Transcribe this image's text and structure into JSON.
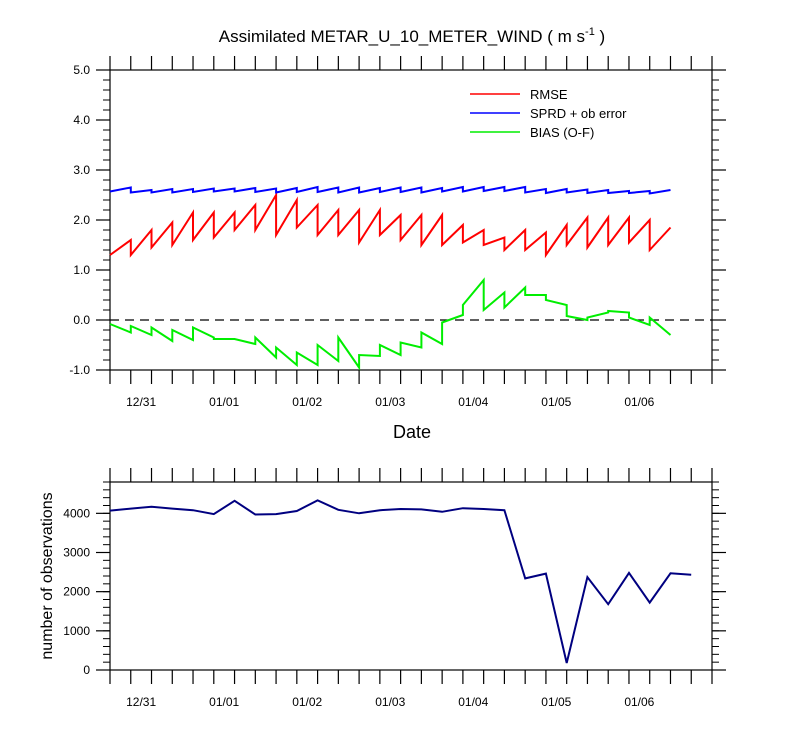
{
  "chart_data": [
    {
      "type": "line",
      "title": "Assimilated METAR_U_10_METER_WIND",
      "title_units": "( m s",
      "title_units_exp": "-1",
      "title_units_close": " )",
      "xlabel": "Date",
      "ylabel": "",
      "ylim": [
        -1.0,
        5.0
      ],
      "xlim": [
        0,
        29
      ],
      "y_ticks": [
        -1.0,
        0.0,
        1.0,
        2.0,
        3.0,
        4.0,
        5.0
      ],
      "y_tick_labels": [
        "-1.0",
        "0.0",
        "1.0",
        "2.0",
        "3.0",
        "4.0",
        "5.0"
      ],
      "x_tick_labels": [
        {
          "pos": 1.5,
          "label": "12/31"
        },
        {
          "pos": 5.5,
          "label": "01/01"
        },
        {
          "pos": 9.5,
          "label": "01/02"
        },
        {
          "pos": 13.5,
          "label": "01/03"
        },
        {
          "pos": 17.5,
          "label": "01/04"
        },
        {
          "pos": 21.5,
          "label": "01/05"
        },
        {
          "pos": 25.5,
          "label": "01/06"
        }
      ],
      "zero_line": true,
      "legend_position": "top-right",
      "series": [
        {
          "name": "RMSE",
          "color": "#ff0000",
          "points": [
            [
              0,
              1.3
            ],
            [
              1,
              1.6
            ],
            [
              1,
              1.3
            ],
            [
              2,
              1.8
            ],
            [
              2,
              1.45
            ],
            [
              3,
              1.95
            ],
            [
              3,
              1.5
            ],
            [
              4,
              2.15
            ],
            [
              4,
              1.6
            ],
            [
              5,
              2.15
            ],
            [
              5,
              1.65
            ],
            [
              6,
              2.15
            ],
            [
              6,
              1.8
            ],
            [
              7,
              2.3
            ],
            [
              7,
              1.8
            ],
            [
              8,
              2.5
            ],
            [
              8,
              1.7
            ],
            [
              9,
              2.4
            ],
            [
              9,
              1.85
            ],
            [
              10,
              2.3
            ],
            [
              10,
              1.7
            ],
            [
              11,
              2.2
            ],
            [
              11,
              1.7
            ],
            [
              12,
              2.2
            ],
            [
              12,
              1.55
            ],
            [
              13,
              2.2
            ],
            [
              13,
              1.7
            ],
            [
              14,
              2.1
            ],
            [
              14,
              1.6
            ],
            [
              15,
              2.1
            ],
            [
              15,
              1.5
            ],
            [
              16,
              2.1
            ],
            [
              16,
              1.5
            ],
            [
              17,
              1.9
            ],
            [
              17,
              1.55
            ],
            [
              18,
              1.8
            ],
            [
              18,
              1.5
            ],
            [
              19,
              1.65
            ],
            [
              19,
              1.4
            ],
            [
              20,
              1.8
            ],
            [
              20,
              1.4
            ],
            [
              21,
              1.75
            ],
            [
              21,
              1.3
            ],
            [
              22,
              1.9
            ],
            [
              22,
              1.5
            ],
            [
              23,
              2.05
            ],
            [
              23,
              1.45
            ],
            [
              24,
              2.05
            ],
            [
              24,
              1.5
            ],
            [
              25,
              2.05
            ],
            [
              25,
              1.55
            ],
            [
              26,
              2.0
            ],
            [
              26,
              1.4
            ],
            [
              27,
              1.85
            ]
          ]
        },
        {
          "name": "SPRD + ob error",
          "color": "#0000ff",
          "points": [
            [
              0,
              2.57
            ],
            [
              1,
              2.65
            ],
            [
              1,
              2.55
            ],
            [
              2,
              2.6
            ],
            [
              2,
              2.55
            ],
            [
              3,
              2.62
            ],
            [
              3,
              2.55
            ],
            [
              4,
              2.62
            ],
            [
              4,
              2.56
            ],
            [
              5,
              2.63
            ],
            [
              5,
              2.57
            ],
            [
              6,
              2.63
            ],
            [
              6,
              2.57
            ],
            [
              7,
              2.64
            ],
            [
              7,
              2.56
            ],
            [
              8,
              2.63
            ],
            [
              8,
              2.55
            ],
            [
              9,
              2.64
            ],
            [
              9,
              2.56
            ],
            [
              10,
              2.66
            ],
            [
              10,
              2.56
            ],
            [
              11,
              2.65
            ],
            [
              11,
              2.55
            ],
            [
              12,
              2.65
            ],
            [
              12,
              2.55
            ],
            [
              13,
              2.64
            ],
            [
              13,
              2.56
            ],
            [
              14,
              2.65
            ],
            [
              14,
              2.56
            ],
            [
              15,
              2.65
            ],
            [
              15,
              2.55
            ],
            [
              16,
              2.64
            ],
            [
              16,
              2.57
            ],
            [
              17,
              2.66
            ],
            [
              17,
              2.57
            ],
            [
              18,
              2.66
            ],
            [
              18,
              2.58
            ],
            [
              19,
              2.66
            ],
            [
              19,
              2.58
            ],
            [
              20,
              2.66
            ],
            [
              20,
              2.55
            ],
            [
              21,
              2.62
            ],
            [
              21,
              2.54
            ],
            [
              22,
              2.62
            ],
            [
              22,
              2.55
            ],
            [
              23,
              2.61
            ],
            [
              23,
              2.54
            ],
            [
              24,
              2.6
            ],
            [
              24,
              2.54
            ],
            [
              25,
              2.58
            ],
            [
              25,
              2.54
            ],
            [
              26,
              2.58
            ],
            [
              26,
              2.53
            ],
            [
              27,
              2.6
            ]
          ]
        },
        {
          "name": "BIAS (O-F)",
          "color": "#00ee00",
          "points": [
            [
              0,
              -0.08
            ],
            [
              1,
              -0.25
            ],
            [
              1,
              -0.12
            ],
            [
              2,
              -0.3
            ],
            [
              2,
              -0.15
            ],
            [
              3,
              -0.42
            ],
            [
              3,
              -0.2
            ],
            [
              4,
              -0.4
            ],
            [
              4,
              -0.15
            ],
            [
              5,
              -0.35
            ],
            [
              5,
              -0.38
            ],
            [
              6,
              -0.38
            ],
            [
              6,
              -0.38
            ],
            [
              7,
              -0.48
            ],
            [
              7,
              -0.35
            ],
            [
              8,
              -0.75
            ],
            [
              8,
              -0.55
            ],
            [
              9,
              -0.9
            ],
            [
              9,
              -0.65
            ],
            [
              10,
              -0.9
            ],
            [
              10,
              -0.5
            ],
            [
              11,
              -0.82
            ],
            [
              11,
              -0.35
            ],
            [
              12,
              -0.95
            ],
            [
              12,
              -0.7
            ],
            [
              13,
              -0.72
            ],
            [
              13,
              -0.5
            ],
            [
              14,
              -0.7
            ],
            [
              14,
              -0.45
            ],
            [
              15,
              -0.55
            ],
            [
              15,
              -0.25
            ],
            [
              16,
              -0.48
            ],
            [
              16,
              -0.05
            ],
            [
              17,
              0.1
            ],
            [
              17,
              0.3
            ],
            [
              18,
              0.8
            ],
            [
              18,
              0.2
            ],
            [
              19,
              0.55
            ],
            [
              19,
              0.25
            ],
            [
              20,
              0.65
            ],
            [
              20,
              0.5
            ],
            [
              21,
              0.5
            ],
            [
              21,
              0.4
            ],
            [
              22,
              0.3
            ],
            [
              22,
              0.08
            ],
            [
              23,
              0.0
            ],
            [
              23,
              0.05
            ],
            [
              24,
              0.15
            ],
            [
              24,
              0.18
            ],
            [
              25,
              0.15
            ],
            [
              25,
              0.05
            ],
            [
              26,
              -0.1
            ],
            [
              26,
              0.05
            ],
            [
              27,
              -0.3
            ]
          ]
        }
      ]
    },
    {
      "type": "line",
      "title": "",
      "xlabel": "",
      "ylabel": "number of observations",
      "ylim": [
        0,
        4800
      ],
      "xlim": [
        0,
        29
      ],
      "y_ticks": [
        0,
        1000,
        2000,
        3000,
        4000
      ],
      "y_tick_labels": [
        "0",
        "1000",
        "2000",
        "3000",
        "4000"
      ],
      "x_tick_labels": [
        {
          "pos": 1.5,
          "label": "12/31"
        },
        {
          "pos": 5.5,
          "label": "01/01"
        },
        {
          "pos": 9.5,
          "label": "01/02"
        },
        {
          "pos": 13.5,
          "label": "01/03"
        },
        {
          "pos": 17.5,
          "label": "01/04"
        },
        {
          "pos": 21.5,
          "label": "01/05"
        },
        {
          "pos": 25.5,
          "label": "01/06"
        }
      ],
      "series": [
        {
          "name": "number of observations",
          "color": "#000080",
          "points": [
            [
              0,
              4070
            ],
            [
              1,
              4120
            ],
            [
              2,
              4170
            ],
            [
              3,
              4120
            ],
            [
              4,
              4080
            ],
            [
              5,
              3980
            ],
            [
              6,
              4320
            ],
            [
              7,
              3970
            ],
            [
              8,
              3980
            ],
            [
              9,
              4060
            ],
            [
              10,
              4330
            ],
            [
              11,
              4090
            ],
            [
              12,
              4000
            ],
            [
              13,
              4080
            ],
            [
              14,
              4110
            ],
            [
              15,
              4100
            ],
            [
              16,
              4040
            ],
            [
              17,
              4130
            ],
            [
              18,
              4110
            ],
            [
              19,
              4080
            ],
            [
              20,
              2340
            ],
            [
              21,
              2460
            ],
            [
              22,
              180
            ],
            [
              23,
              2370
            ],
            [
              24,
              1680
            ],
            [
              25,
              2480
            ],
            [
              26,
              1720
            ],
            [
              27,
              2470
            ],
            [
              28,
              2430
            ]
          ]
        }
      ]
    }
  ]
}
